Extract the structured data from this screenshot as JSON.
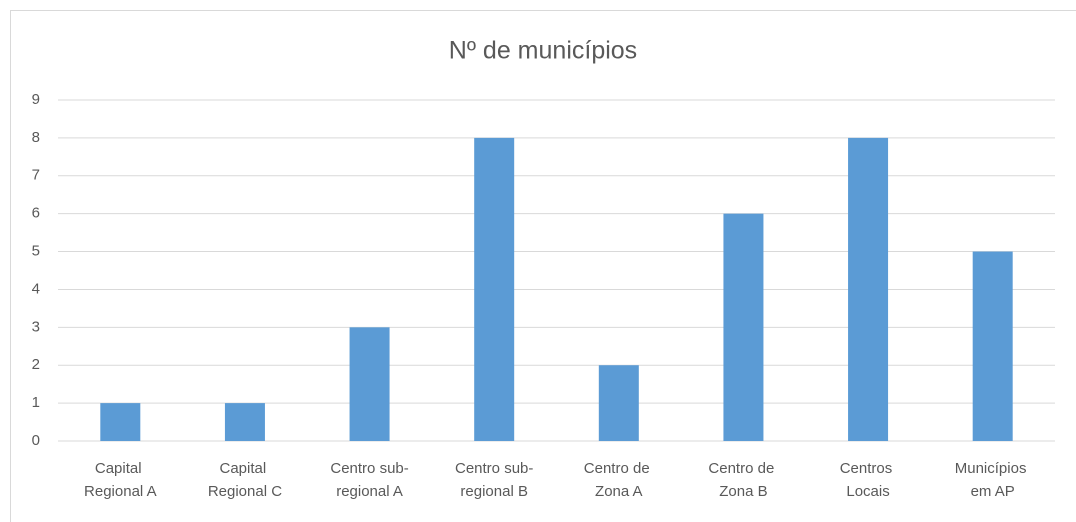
{
  "chart_data": {
    "type": "bar",
    "title": "Nº de municípios",
    "categories": [
      "Capital Regional A",
      "Capital Regional C",
      "Centro sub-regional A",
      "Centro sub-regional B",
      "Centro de Zona A",
      "Centro de Zona B",
      "Centros Locais",
      "Municípios em AP"
    ],
    "values": [
      1,
      1,
      3,
      8,
      2,
      6,
      8,
      5
    ],
    "color": "#5b9bd5",
    "ylim": [
      0,
      9
    ],
    "yticks": [
      0,
      1,
      2,
      3,
      4,
      5,
      6,
      7,
      8,
      9
    ],
    "grid": true
  }
}
